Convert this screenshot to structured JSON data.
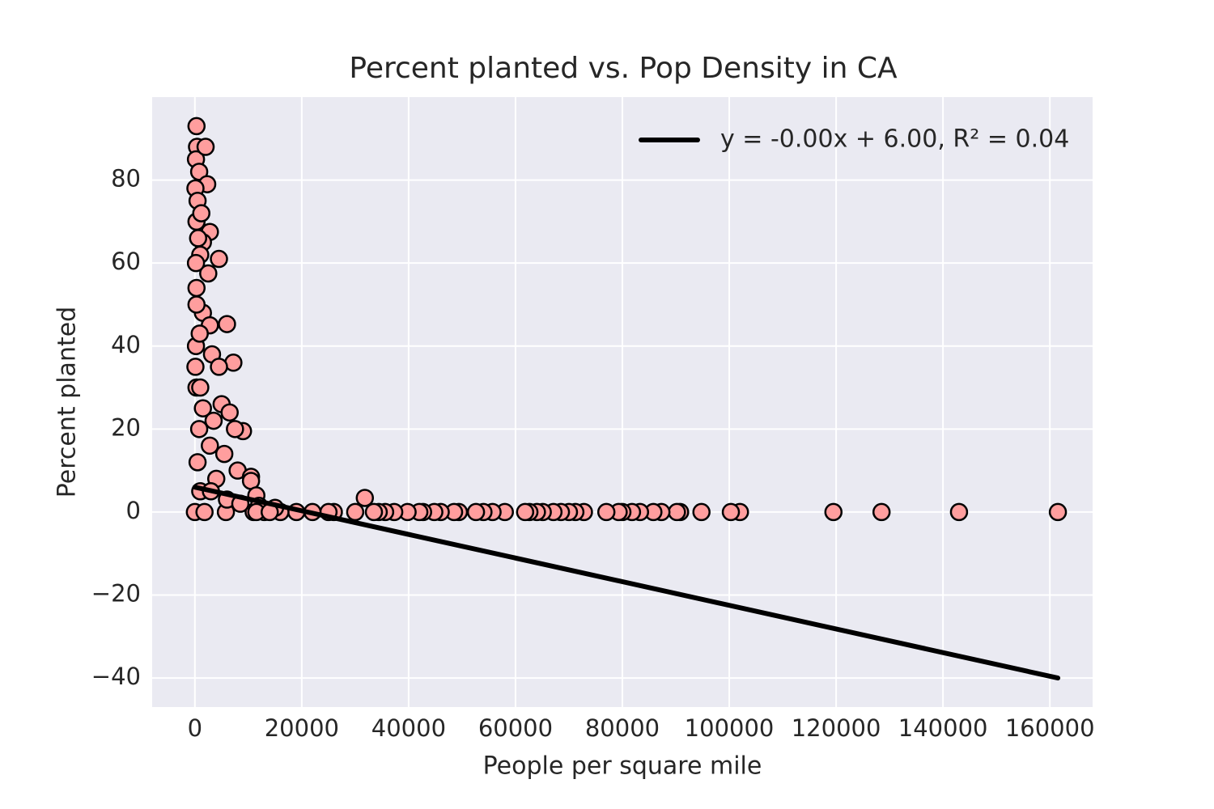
{
  "chart_data": {
    "type": "scatter",
    "title": "Percent planted vs. Pop Density in CA",
    "x_label": "People per square mile",
    "y_label": "Percent planted",
    "xlim": [
      -8000,
      168000
    ],
    "ylim": [
      -47,
      100
    ],
    "xticks": [
      0,
      20000,
      40000,
      60000,
      80000,
      100000,
      120000,
      140000,
      160000
    ],
    "yticks": [
      {
        "value": -40,
        "label": "−40"
      },
      {
        "value": -20,
        "label": "−20"
      },
      0,
      20,
      40,
      60,
      80
    ],
    "grid": true,
    "background": "#eaeaf2",
    "legend_position": "upper right",
    "series": [
      {
        "mode": "markers",
        "color": "#ff9e9e",
        "edgecolor": "#000000",
        "x": [
          161500,
          143000,
          128500,
          119500,
          102000,
          100300,
          94800,
          90800,
          90200,
          87300,
          85800,
          83300,
          81800,
          80000,
          79300,
          77000,
          72800,
          71200,
          70000,
          68500,
          67100,
          65100,
          64000,
          62600,
          61800,
          58000,
          55700,
          54000,
          52600,
          49400,
          48500,
          46000,
          44800,
          42700,
          42000,
          39800,
          37300,
          35600,
          34400,
          33500,
          30000,
          26000,
          25000,
          22000,
          19000,
          16000,
          13000,
          11000,
          31800,
          300,
          400,
          200,
          800,
          2300,
          100,
          500,
          300,
          2800,
          1500,
          4500,
          1000,
          2500,
          300,
          1500,
          2800,
          6000,
          200,
          3200,
          7200,
          4500,
          300,
          1000,
          5000,
          6500,
          3500,
          9000,
          7500,
          800,
          2800,
          5500,
          8000,
          10500,
          10500,
          4000,
          11500,
          1000,
          15000,
          12000,
          0,
          1800,
          5800,
          11500,
          300,
          200,
          100,
          500,
          1500,
          3000,
          6000,
          14000,
          8500,
          2000,
          1200,
          600,
          900
        ],
        "values": [
          0,
          0,
          0,
          0,
          0,
          0,
          0,
          0,
          0,
          0,
          0,
          0,
          0,
          0,
          0,
          0,
          0,
          0,
          0,
          0,
          0,
          0,
          0,
          0,
          0,
          0,
          0,
          0,
          0,
          0,
          0,
          0,
          0,
          0,
          0,
          0,
          0,
          0,
          0,
          0,
          0,
          0,
          0,
          0,
          0,
          0,
          0,
          0,
          3.4,
          93,
          88,
          85,
          82,
          79,
          78,
          75,
          70,
          67.5,
          65,
          61,
          62,
          57.5,
          54,
          48,
          45,
          45.3,
          40,
          38,
          36,
          35,
          30,
          30,
          26,
          24,
          22,
          19.5,
          20,
          20,
          16,
          14,
          10,
          8.5,
          7.5,
          8,
          4,
          5,
          1,
          1.5,
          0,
          0,
          0,
          0,
          50,
          60,
          35,
          12,
          25,
          5,
          3,
          0,
          2,
          88,
          72,
          66,
          43
        ]
      },
      {
        "mode": "line",
        "name": "y = -0.00x + 6.00, R² = 0.04",
        "color": "#000000",
        "x": [
          0,
          161500
        ],
        "values": [
          6,
          -40
        ]
      }
    ]
  }
}
